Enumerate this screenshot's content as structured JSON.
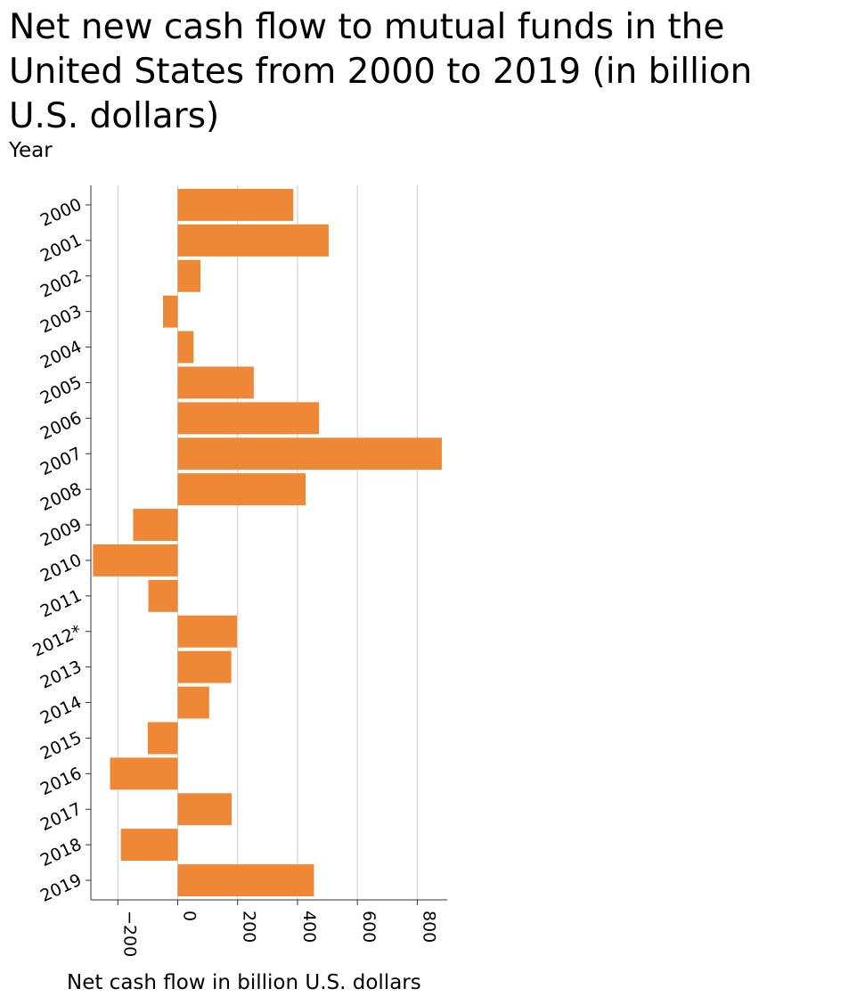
{
  "chart_data": {
    "type": "bar",
    "orientation": "horizontal",
    "title_lines": [
      "Net new cash flow to mutual funds in the",
      "United States from 2000 to 2019 (in billion",
      "U.S. dollars)"
    ],
    "ylabel": "Year",
    "xlabel": "Net cash flow in billion U.S. dollars",
    "categories": [
      "2000",
      "2001",
      "2002",
      "2003",
      "2004",
      "2005",
      "2006",
      "2007",
      "2008",
      "2009",
      "2010",
      "2011",
      "2012*",
      "2013",
      "2014",
      "2015",
      "2016",
      "2017",
      "2018",
      "2019"
    ],
    "values": [
      386,
      504,
      76,
      -49,
      53,
      254,
      472,
      882,
      427,
      -149,
      -283,
      -98,
      198,
      179,
      105,
      -100,
      -226,
      180,
      -190,
      455
    ],
    "xlim": [
      -290,
      900
    ],
    "xticks": [
      -200,
      0,
      200,
      400,
      600,
      800
    ],
    "xtick_labels": [
      "−200",
      "0",
      "200",
      "400",
      "600",
      "800"
    ],
    "grid": "vertical",
    "bar_color": "#ee8736",
    "grid_color": "#cccccc"
  }
}
